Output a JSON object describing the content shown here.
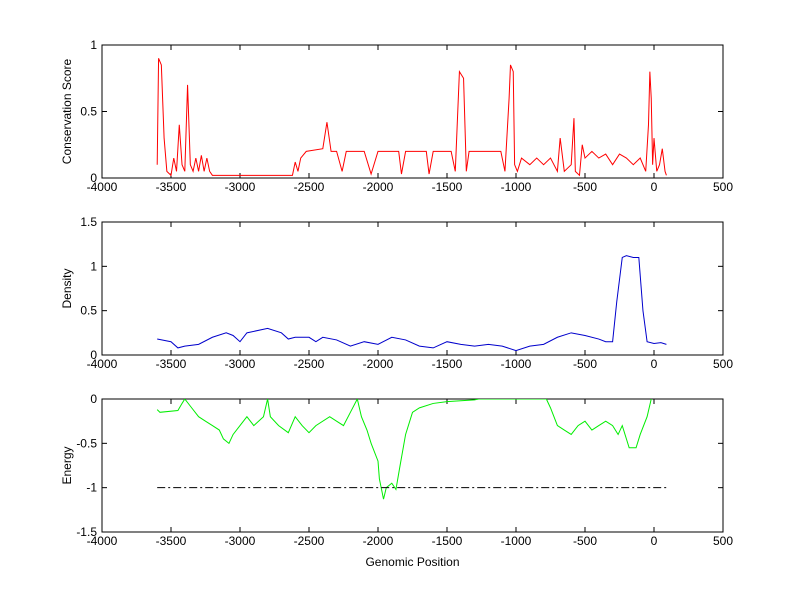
{
  "chart_data": [
    {
      "type": "line",
      "ylabel": "Conservation Score",
      "xlim": [
        -4000,
        500
      ],
      "ylim": [
        0,
        1
      ],
      "xticks": [
        -4000,
        -3500,
        -3000,
        -2500,
        -2000,
        -1500,
        -1000,
        -500,
        0,
        500
      ],
      "yticks": [
        0,
        0.5,
        1
      ],
      "series": [
        {
          "color": "#ff0000",
          "linestyle": "-",
          "x": [
            -3600,
            -3590,
            -3570,
            -3550,
            -3530,
            -3500,
            -3480,
            -3460,
            -3440,
            -3420,
            -3400,
            -3380,
            -3360,
            -3340,
            -3320,
            -3300,
            -3280,
            -3260,
            -3240,
            -3220,
            -3200,
            -3000,
            -2700,
            -2620,
            -2600,
            -2580,
            -2560,
            -2520,
            -2400,
            -2370,
            -2340,
            -2300,
            -2260,
            -2230,
            -2100,
            -2050,
            -2000,
            -1850,
            -1830,
            -1800,
            -1650,
            -1630,
            -1600,
            -1470,
            -1440,
            -1410,
            -1380,
            -1360,
            -1340,
            -1200,
            -1110,
            -1080,
            -1050,
            -1040,
            -1020,
            -1010,
            -990,
            -960,
            -900,
            -850,
            -800,
            -750,
            -700,
            -680,
            -650,
            -600,
            -580,
            -570,
            -540,
            -520,
            -500,
            -450,
            -400,
            -350,
            -300,
            -250,
            -200,
            -150,
            -100,
            -60,
            -40,
            -30,
            -20,
            -10,
            0,
            20,
            40,
            60,
            80,
            90
          ],
          "values": [
            0.1,
            0.9,
            0.85,
            0.3,
            0.05,
            0.02,
            0.15,
            0.05,
            0.4,
            0.1,
            0.05,
            0.7,
            0.1,
            0.05,
            0.15,
            0.05,
            0.17,
            0.05,
            0.15,
            0.05,
            0.02,
            0.02,
            0.02,
            0.02,
            0.12,
            0.05,
            0.15,
            0.2,
            0.22,
            0.42,
            0.2,
            0.2,
            0.05,
            0.2,
            0.2,
            0.03,
            0.2,
            0.2,
            0.03,
            0.2,
            0.2,
            0.03,
            0.2,
            0.2,
            0.05,
            0.8,
            0.75,
            0.05,
            0.2,
            0.2,
            0.2,
            0.05,
            0.6,
            0.85,
            0.8,
            0.1,
            0.05,
            0.15,
            0.1,
            0.15,
            0.1,
            0.15,
            0.05,
            0.3,
            0.05,
            0.1,
            0.45,
            0.05,
            0.02,
            0.25,
            0.15,
            0.2,
            0.15,
            0.18,
            0.1,
            0.18,
            0.15,
            0.1,
            0.15,
            0.05,
            0.4,
            0.8,
            0.6,
            0.1,
            0.3,
            0.05,
            0.1,
            0.22,
            0.05,
            0.02
          ]
        }
      ]
    },
    {
      "type": "line",
      "ylabel": "Density",
      "xlim": [
        -4000,
        500
      ],
      "ylim": [
        0,
        1.5
      ],
      "xticks": [
        -4000,
        -3500,
        -3000,
        -2500,
        -2000,
        -1500,
        -1000,
        -500,
        0,
        500
      ],
      "yticks": [
        0,
        0.5,
        1,
        1.5
      ],
      "series": [
        {
          "color": "#0000cc",
          "linestyle": "-",
          "x": [
            -3600,
            -3500,
            -3450,
            -3400,
            -3300,
            -3200,
            -3100,
            -3050,
            -3000,
            -2950,
            -2800,
            -2700,
            -2650,
            -2600,
            -2500,
            -2450,
            -2400,
            -2300,
            -2200,
            -2100,
            -2000,
            -1900,
            -1800,
            -1700,
            -1600,
            -1500,
            -1400,
            -1300,
            -1200,
            -1100,
            -1000,
            -900,
            -800,
            -700,
            -600,
            -500,
            -400,
            -350,
            -300,
            -270,
            -230,
            -200,
            -150,
            -110,
            -80,
            -50,
            0,
            50,
            90
          ],
          "values": [
            0.18,
            0.15,
            0.08,
            0.1,
            0.12,
            0.2,
            0.25,
            0.22,
            0.15,
            0.25,
            0.3,
            0.25,
            0.18,
            0.2,
            0.2,
            0.15,
            0.2,
            0.17,
            0.1,
            0.15,
            0.12,
            0.2,
            0.17,
            0.1,
            0.08,
            0.15,
            0.12,
            0.1,
            0.12,
            0.1,
            0.05,
            0.1,
            0.12,
            0.2,
            0.25,
            0.22,
            0.18,
            0.15,
            0.15,
            0.6,
            1.1,
            1.12,
            1.1,
            1.1,
            0.5,
            0.15,
            0.13,
            0.14,
            0.12
          ]
        }
      ]
    },
    {
      "type": "line",
      "ylabel": "Energy",
      "xlabel": "Genomic Position",
      "xlim": [
        -4000,
        500
      ],
      "ylim": [
        -1.5,
        0
      ],
      "xticks": [
        -4000,
        -3500,
        -3000,
        -2500,
        -2000,
        -1500,
        -1000,
        -500,
        0,
        500
      ],
      "yticks": [
        -1.5,
        -1,
        -0.5,
        0
      ],
      "series": [
        {
          "color": "#00ee00",
          "linestyle": "-",
          "x": [
            -3600,
            -3580,
            -3450,
            -3420,
            -3400,
            -3350,
            -3300,
            -3250,
            -3200,
            -3150,
            -3120,
            -3080,
            -3050,
            -3000,
            -2950,
            -2900,
            -2830,
            -2800,
            -2780,
            -2720,
            -2650,
            -2600,
            -2550,
            -2500,
            -2450,
            -2350,
            -2300,
            -2250,
            -2200,
            -2150,
            -2120,
            -2080,
            -2050,
            -2000,
            -1990,
            -1960,
            -1940,
            -1900,
            -1870,
            -1840,
            -1800,
            -1750,
            -1700,
            -1600,
            -1500,
            -1400,
            -1300,
            -1270,
            -780,
            -750,
            -700,
            -650,
            -600,
            -550,
            -500,
            -450,
            -400,
            -350,
            -300,
            -260,
            -230,
            -180,
            -130,
            -100,
            -50,
            -20
          ],
          "values": [
            -0.12,
            -0.15,
            -0.13,
            -0.05,
            0,
            -0.1,
            -0.2,
            -0.25,
            -0.3,
            -0.35,
            -0.45,
            -0.5,
            -0.4,
            -0.3,
            -0.2,
            -0.3,
            -0.2,
            0,
            -0.2,
            -0.3,
            -0.38,
            -0.2,
            -0.3,
            -0.38,
            -0.3,
            -0.2,
            -0.25,
            -0.3,
            -0.15,
            0,
            -0.2,
            -0.35,
            -0.5,
            -0.7,
            -0.9,
            -1.13,
            -1,
            -0.95,
            -1.02,
            -0.75,
            -0.4,
            -0.15,
            -0.1,
            -0.05,
            -0.03,
            -0.02,
            -0.01,
            0,
            0,
            -0.1,
            -0.3,
            -0.35,
            -0.4,
            -0.3,
            -0.25,
            -0.35,
            -0.3,
            -0.25,
            -0.3,
            -0.4,
            -0.3,
            -0.55,
            -0.55,
            -0.4,
            -0.2,
            0
          ]
        },
        {
          "color": "#000000",
          "linestyle": "-.",
          "x": [
            -3600,
            90
          ],
          "values": [
            -1,
            -1
          ]
        }
      ]
    }
  ]
}
